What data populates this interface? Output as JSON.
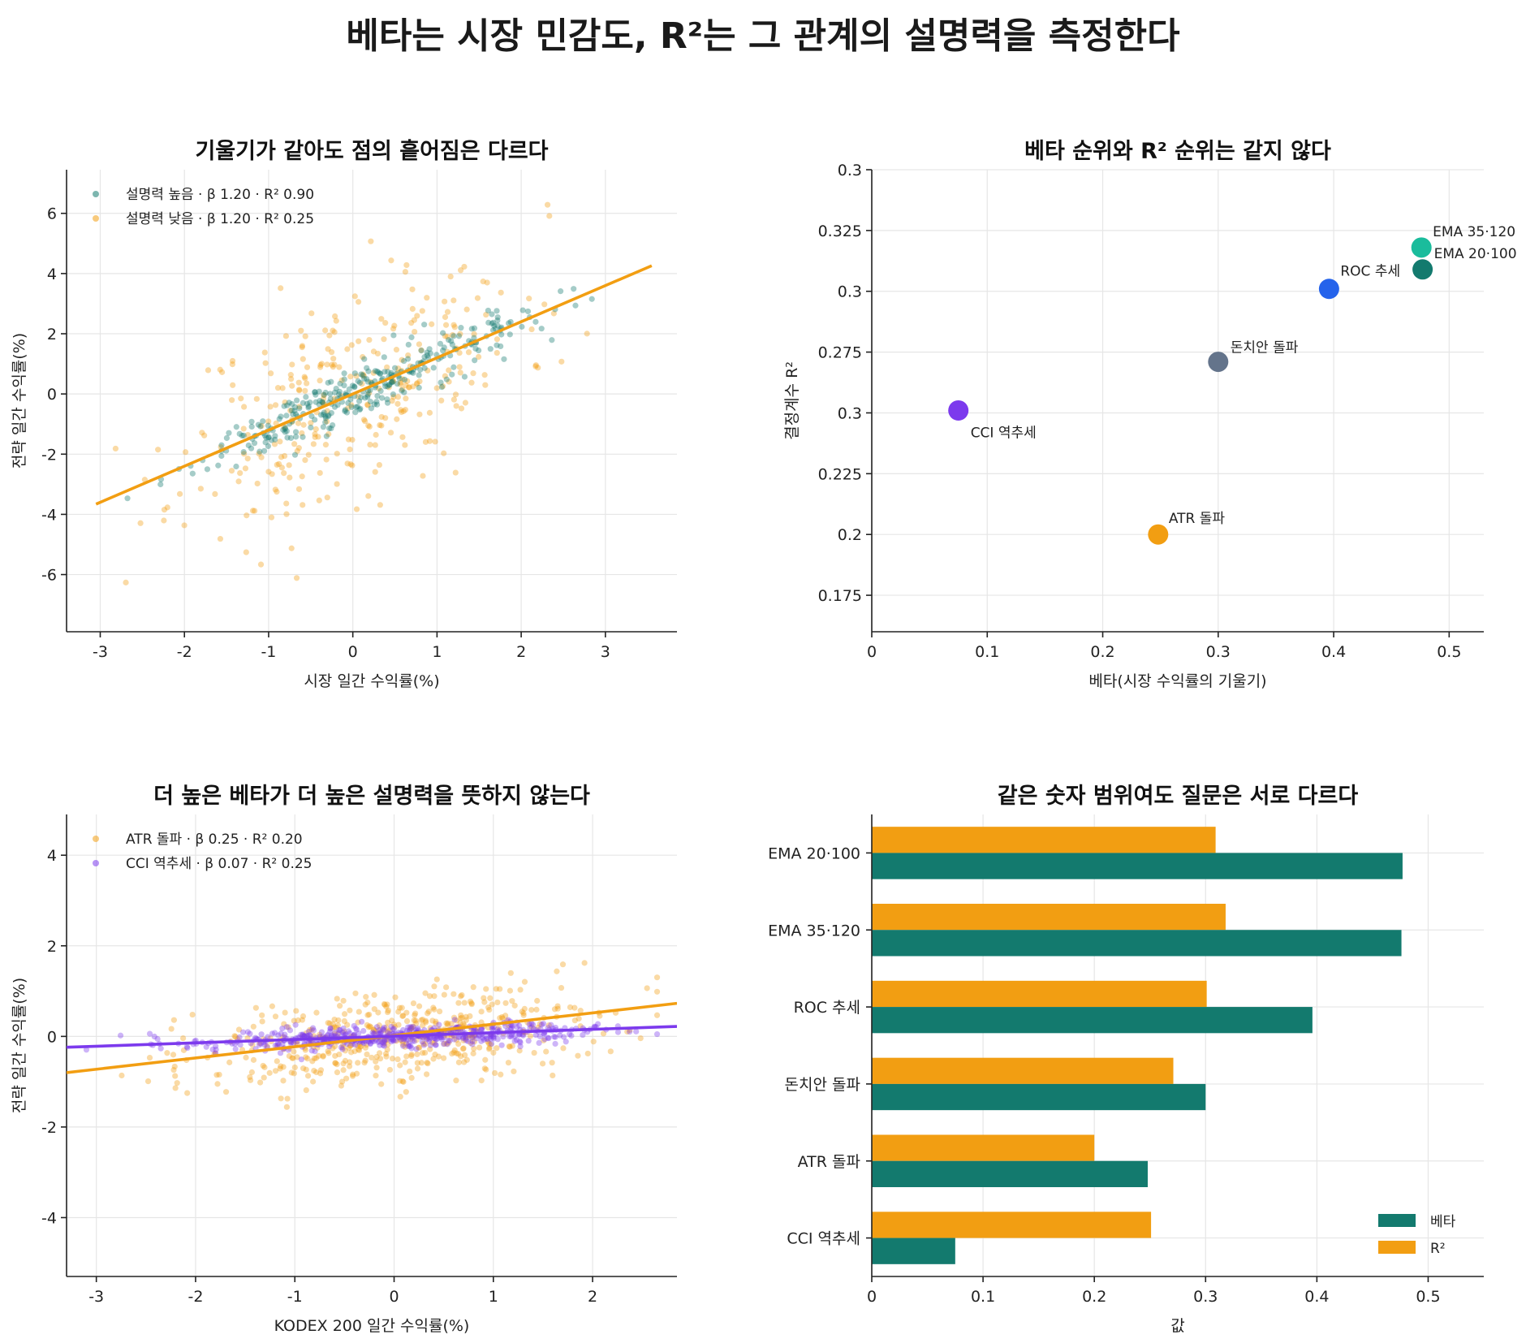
{
  "title": "베타는 시장 민감도, R²는 그 관계의 설명력을 측정한다",
  "colors": {
    "teal": "#137a6e",
    "orange": "#f29e12",
    "purple": "#7c3aed",
    "blue": "#2563eb",
    "slate": "#64748b",
    "tealbright": "#1abc9c"
  },
  "chart_data": [
    {
      "type": "scatter",
      "title": "기울기가 같아도 점의 흩어짐은 다르다",
      "xlabel": "시장 일간 수익률(%)",
      "ylabel": "전략 일간 수익률(%)",
      "xlim": [
        -3.4,
        3.85
      ],
      "ylim": [
        -7.9,
        7.45
      ],
      "xticks": [
        -3,
        -2,
        -1,
        0,
        1,
        2,
        3
      ],
      "yticks": [
        -6,
        -4,
        -2,
        0,
        2,
        4,
        6
      ],
      "grid": true,
      "legend": "top-left",
      "series": [
        {
          "name": "설명력 높음 · β 1.20 · R² 0.90",
          "color": "#137a6e",
          "beta": 1.2,
          "r2": 0.9,
          "intercept": 0.0,
          "xrange": [
            -3.05,
            3.55
          ]
        },
        {
          "name": "설명력 낮음 · β 1.20 · R² 0.25",
          "color": "#f29e12",
          "beta": 1.2,
          "r2": 0.25,
          "intercept": 0.0,
          "xrange": [
            -3.05,
            3.55
          ]
        }
      ],
      "fit_line": {
        "x": [
          -3.05,
          3.55
        ],
        "y": [
          -3.66,
          4.26
        ],
        "color": "#f29e12"
      }
    },
    {
      "type": "scatter",
      "title": "베타 순위와 R² 순위는 같지 않다",
      "xlabel": "베타(시장 수익률의 기울기)",
      "ylabel": "결정계수 R²",
      "xlim": [
        0.0,
        0.53
      ],
      "ylim": [
        0.16,
        0.35
      ],
      "xticks": [
        0.0,
        0.1,
        0.2,
        0.3,
        0.4,
        0.5
      ],
      "yticks": [
        0.175,
        0.2,
        0.225,
        0.25,
        0.275,
        0.3,
        0.325,
        0.35
      ],
      "grid": true,
      "points": [
        {
          "label": "CCI 역추세",
          "x": 0.075,
          "y": 0.251,
          "color": "#7c3aed"
        },
        {
          "label": "ATR 돌파",
          "x": 0.248,
          "y": 0.2,
          "color": "#f29e12"
        },
        {
          "label": "돈치안 돌파",
          "x": 0.3,
          "y": 0.271,
          "color": "#64748b"
        },
        {
          "label": "ROC 추세",
          "x": 0.396,
          "y": 0.301,
          "color": "#2563eb"
        },
        {
          "label": "EMA 35·120",
          "x": 0.476,
          "y": 0.318,
          "color": "#1abc9c"
        },
        {
          "label": "EMA 20·100",
          "x": 0.477,
          "y": 0.309,
          "color": "#137a6e"
        }
      ]
    },
    {
      "type": "scatter",
      "title": "더 높은 베타가 더 높은 설명력을 뜻하지 않는다",
      "xlabel": "KODEX 200 일간 수익률(%)",
      "ylabel": "전략 일간 수익률(%)",
      "xlim": [
        -3.3,
        2.85
      ],
      "ylim": [
        -5.3,
        4.9
      ],
      "xticks": [
        -3,
        -2,
        -1,
        0,
        1,
        2
      ],
      "yticks": [
        -4,
        -2,
        0,
        2,
        4
      ],
      "grid": true,
      "legend": "top-left",
      "series": [
        {
          "name": "ATR 돌파 · β 0.25 · R² 0.20",
          "color": "#f29e12",
          "beta": 0.25,
          "r2": 0.2,
          "intercept": 0.0
        },
        {
          "name": "CCI 역추세 · β 0.07 · R² 0.25",
          "color": "#7c3aed",
          "beta": 0.07,
          "r2": 0.25,
          "intercept": 0.0
        }
      ],
      "fit_lines": [
        {
          "x": [
            -3.3,
            2.85
          ],
          "y": [
            -0.8,
            0.73
          ],
          "color": "#f29e12"
        },
        {
          "x": [
            -3.3,
            2.85
          ],
          "y": [
            -0.24,
            0.22
          ],
          "color": "#7c3aed"
        }
      ]
    },
    {
      "type": "bar",
      "orientation": "horizontal",
      "title": "같은 숫자 범위여도 질문은 서로 다르다",
      "xlabel": "값",
      "xlim": [
        0.0,
        0.55
      ],
      "xticks": [
        0.0,
        0.1,
        0.2,
        0.3,
        0.4,
        0.5
      ],
      "categories": [
        "EMA 20·100",
        "EMA 35·120",
        "ROC 추세",
        "돈치안 돌파",
        "ATR 돌파",
        "CCI 역추세"
      ],
      "legend": "lower-right",
      "series": [
        {
          "name": "베타",
          "color": "#137a6e",
          "values": [
            0.477,
            0.476,
            0.396,
            0.3,
            0.248,
            0.075
          ]
        },
        {
          "name": "R²",
          "color": "#f29e12",
          "values": [
            0.309,
            0.318,
            0.301,
            0.271,
            0.2,
            0.251
          ]
        }
      ]
    }
  ]
}
